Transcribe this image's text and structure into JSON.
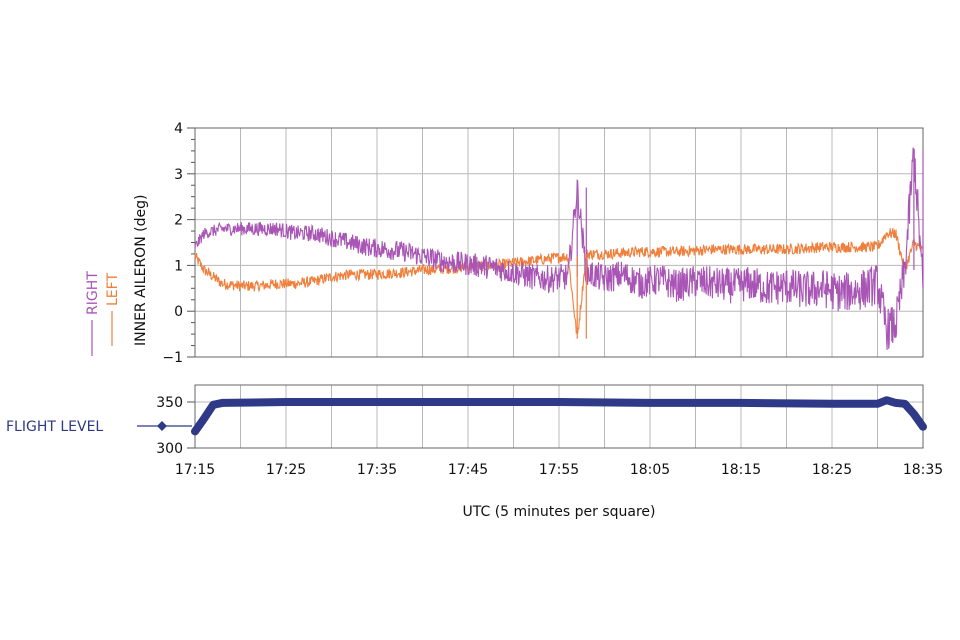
{
  "chart_data": [
    {
      "type": "line",
      "panel": "aileron",
      "ylabel": "INNER AILERON (deg)",
      "xlim": [
        "17:15",
        "18:35"
      ],
      "ylim": [
        -1,
        4
      ],
      "yticks": [
        "4",
        "3",
        "2",
        "1",
        "0",
        "−1"
      ],
      "grid": true,
      "legend": "left",
      "series": [
        {
          "name": "RIGHT",
          "color": "#a855b5",
          "points": [
            [
              "17:15",
              1.4
            ],
            [
              "17:16",
              1.7
            ],
            [
              "17:18",
              1.8
            ],
            [
              "17:20",
              1.8
            ],
            [
              "17:22",
              1.8
            ],
            [
              "17:24",
              1.8
            ],
            [
              "17:26",
              1.7
            ],
            [
              "17:28",
              1.7
            ],
            [
              "17:30",
              1.6
            ],
            [
              "17:32",
              1.5
            ],
            [
              "17:34",
              1.4
            ],
            [
              "17:36",
              1.35
            ],
            [
              "17:38",
              1.3
            ],
            [
              "17:40",
              1.2
            ],
            [
              "17:42",
              1.1
            ],
            [
              "17:44",
              1.05
            ],
            [
              "17:46",
              1.0
            ],
            [
              "17:48",
              0.95
            ],
            [
              "17:50",
              0.85
            ],
            [
              "17:52",
              0.75
            ],
            [
              "17:54",
              0.7
            ],
            [
              "17:56",
              0.75
            ],
            [
              "17:57",
              2.7
            ],
            [
              "17:58",
              0.85
            ],
            [
              "18:00",
              0.7
            ],
            [
              "18:02",
              0.8
            ],
            [
              "18:04",
              0.6
            ],
            [
              "18:06",
              0.7
            ],
            [
              "18:08",
              0.55
            ],
            [
              "18:10",
              0.65
            ],
            [
              "18:12",
              0.6
            ],
            [
              "18:14",
              0.55
            ],
            [
              "18:16",
              0.6
            ],
            [
              "18:18",
              0.5
            ],
            [
              "18:20",
              0.55
            ],
            [
              "18:22",
              0.45
            ],
            [
              "18:24",
              0.5
            ],
            [
              "18:26",
              0.4
            ],
            [
              "18:28",
              0.45
            ],
            [
              "18:30",
              0.6
            ],
            [
              "18:31",
              -0.4
            ],
            [
              "18:32",
              -0.3
            ],
            [
              "18:33",
              0.9
            ],
            [
              "18:34",
              3.5
            ],
            [
              "18:35",
              0.5
            ]
          ]
        },
        {
          "name": "LEFT",
          "color": "#f07f3c",
          "points": [
            [
              "17:15",
              1.2
            ],
            [
              "17:16",
              0.9
            ],
            [
              "17:18",
              0.6
            ],
            [
              "17:20",
              0.55
            ],
            [
              "17:22",
              0.55
            ],
            [
              "17:24",
              0.6
            ],
            [
              "17:26",
              0.6
            ],
            [
              "17:28",
              0.65
            ],
            [
              "17:30",
              0.75
            ],
            [
              "17:32",
              0.8
            ],
            [
              "17:34",
              0.8
            ],
            [
              "17:36",
              0.82
            ],
            [
              "17:38",
              0.85
            ],
            [
              "17:40",
              0.9
            ],
            [
              "17:42",
              0.92
            ],
            [
              "17:44",
              0.95
            ],
            [
              "17:46",
              0.98
            ],
            [
              "17:48",
              1.0
            ],
            [
              "17:50",
              1.05
            ],
            [
              "17:52",
              1.1
            ],
            [
              "17:54",
              1.15
            ],
            [
              "17:56",
              1.2
            ],
            [
              "17:57",
              -0.6
            ],
            [
              "17:58",
              1.25
            ],
            [
              "18:00",
              1.25
            ],
            [
              "18:04",
              1.3
            ],
            [
              "18:08",
              1.3
            ],
            [
              "18:12",
              1.35
            ],
            [
              "18:16",
              1.35
            ],
            [
              "18:20",
              1.35
            ],
            [
              "18:24",
              1.4
            ],
            [
              "18:28",
              1.4
            ],
            [
              "18:30",
              1.4
            ],
            [
              "18:31",
              1.7
            ],
            [
              "18:32",
              1.7
            ],
            [
              "18:33",
              0.9
            ],
            [
              "18:34",
              1.5
            ],
            [
              "18:35",
              1.3
            ]
          ]
        }
      ]
    },
    {
      "type": "line",
      "panel": "flight-level",
      "xlabel": "UTC (5 minutes per square)",
      "xticks": [
        "17:15",
        "17:25",
        "17:35",
        "17:45",
        "17:55",
        "18:05",
        "18:15",
        "18:25",
        "18:35"
      ],
      "xlim": [
        "17:15",
        "18:35"
      ],
      "ylim": [
        300,
        350
      ],
      "yticks": [
        "350",
        "300"
      ],
      "grid": true,
      "legend": "left",
      "series": [
        {
          "name": "FLIGHT LEVEL",
          "color": "#2e3a87",
          "points": [
            [
              "17:15",
              318
            ],
            [
              "17:16",
              332
            ],
            [
              "17:17",
              347
            ],
            [
              "17:18",
              349
            ],
            [
              "17:25",
              350
            ],
            [
              "17:35",
              350
            ],
            [
              "17:45",
              350
            ],
            [
              "17:55",
              350
            ],
            [
              "18:05",
              349
            ],
            [
              "18:15",
              349
            ],
            [
              "18:25",
              348
            ],
            [
              "18:30",
              348
            ],
            [
              "18:31",
              352
            ],
            [
              "18:32",
              349
            ],
            [
              "18:33",
              348
            ],
            [
              "18:34",
              337
            ],
            [
              "18:35",
              323
            ]
          ]
        }
      ]
    }
  ]
}
